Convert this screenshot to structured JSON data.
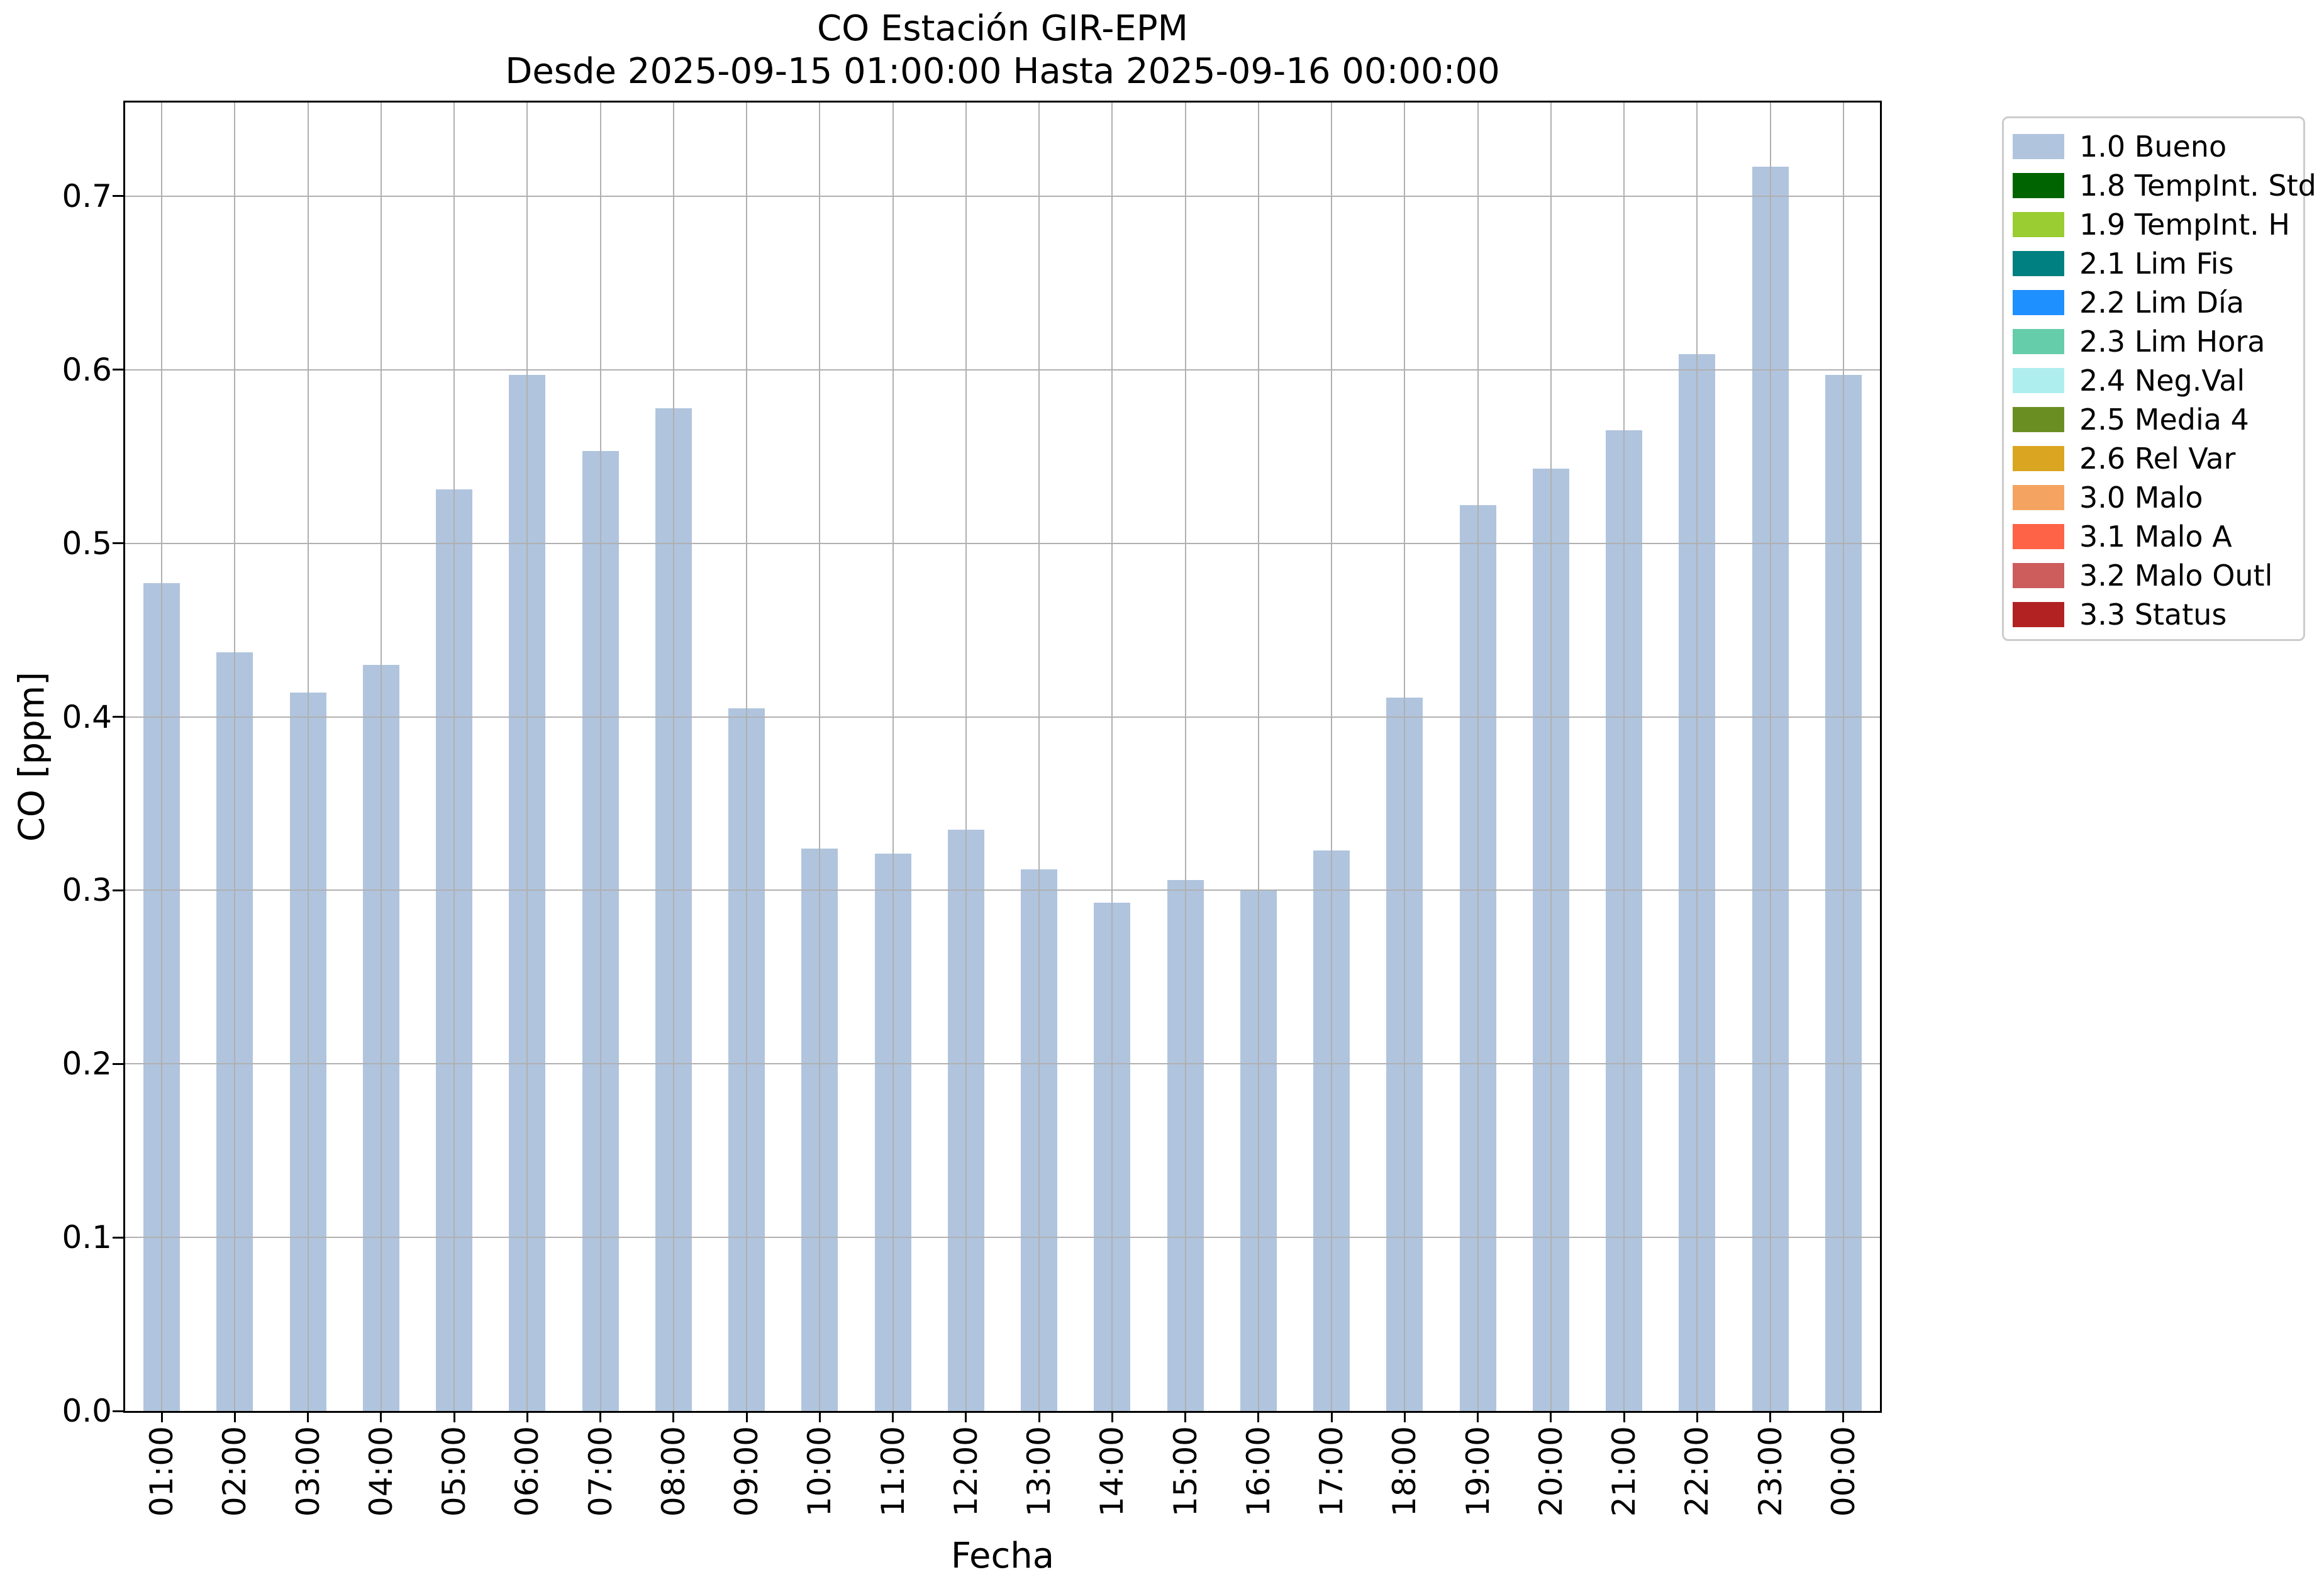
{
  "chart_data": {
    "type": "bar",
    "title": "CO Estación GIR-EPM",
    "subtitle": "Desde 2025-09-15 01:00:00 Hasta 2025-09-16 00:00:00",
    "xlabel": "Fecha",
    "ylabel": "CO [ppm]",
    "categories": [
      "01:00",
      "02:00",
      "03:00",
      "04:00",
      "05:00",
      "06:00",
      "07:00",
      "08:00",
      "09:00",
      "10:00",
      "11:00",
      "12:00",
      "13:00",
      "14:00",
      "15:00",
      "16:00",
      "17:00",
      "18:00",
      "19:00",
      "20:00",
      "21:00",
      "22:00",
      "23:00",
      "00:00"
    ],
    "values": [
      0.477,
      0.437,
      0.414,
      0.43,
      0.531,
      0.597,
      0.553,
      0.578,
      0.405,
      0.324,
      0.321,
      0.335,
      0.312,
      0.293,
      0.306,
      0.3,
      0.323,
      0.411,
      0.522,
      0.543,
      0.565,
      0.609,
      0.717,
      0.597
    ],
    "series_name": "1.0 Bueno",
    "ylim": [
      0,
      0.754
    ],
    "yticks": [
      0.0,
      0.1,
      0.2,
      0.3,
      0.4,
      0.5,
      0.6,
      0.7
    ],
    "grid": true,
    "legend_position": "outside-upper-right",
    "bar_color": "#b0c4de",
    "legend": [
      {
        "label": "1.0 Bueno",
        "color": "#b0c4de"
      },
      {
        "label": "1.8 TempInt. Std",
        "color": "#006400"
      },
      {
        "label": "1.9 TempInt. H",
        "color": "#9acd32"
      },
      {
        "label": "2.1 Lim Fis",
        "color": "#008080"
      },
      {
        "label": "2.2 Lim Día",
        "color": "#1e90ff"
      },
      {
        "label": "2.3 Lim Hora",
        "color": "#66cdaa"
      },
      {
        "label": "2.4 Neg.Val",
        "color": "#afeeee"
      },
      {
        "label": "2.5 Media 4",
        "color": "#6b8e23"
      },
      {
        "label": "2.6 Rel Var",
        "color": "#daa520"
      },
      {
        "label": "3.0 Malo",
        "color": "#f4a460"
      },
      {
        "label": "3.1 Malo A",
        "color": "#ff6347"
      },
      {
        "label": "3.2 Malo Outl",
        "color": "#cd5c5c"
      },
      {
        "label": "3.3 Status",
        "color": "#b22222"
      }
    ],
    "colors": {
      "grid": "#b0b0b0",
      "spine": "#000000",
      "background": "#ffffff",
      "legend_border": "#cccccc",
      "text": "#000000"
    }
  }
}
